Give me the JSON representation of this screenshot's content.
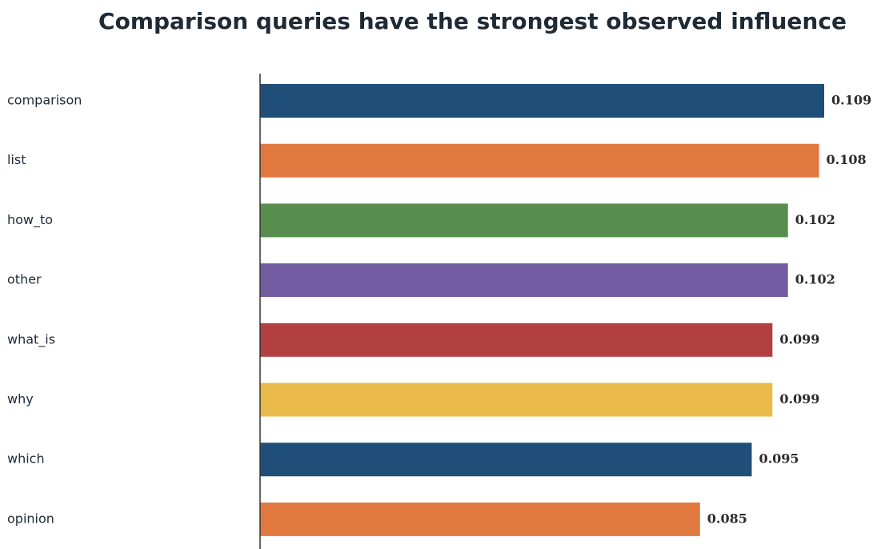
{
  "chart_data": {
    "type": "bar",
    "orientation": "horizontal",
    "title": "Comparison queries have the strongest observed influence",
    "xlabel": "",
    "ylabel": "",
    "grid": false,
    "legend": "none",
    "categories": [
      "comparison",
      "list",
      "how_to",
      "other",
      "what_is",
      "why",
      "which",
      "opinion"
    ],
    "values": [
      0.109,
      0.108,
      0.102,
      0.102,
      0.099,
      0.099,
      0.095,
      0.085
    ],
    "value_labels": [
      "0.109",
      "0.108",
      "0.102",
      "0.102",
      "0.099",
      "0.099",
      "0.095",
      "0.085"
    ],
    "colors": [
      "#1f4e79",
      "#e07840",
      "#578e4e",
      "#745ca2",
      "#b34040",
      "#e9b94a",
      "#1f4e79",
      "#e07840"
    ],
    "xlim": [
      0,
      0.109
    ]
  }
}
